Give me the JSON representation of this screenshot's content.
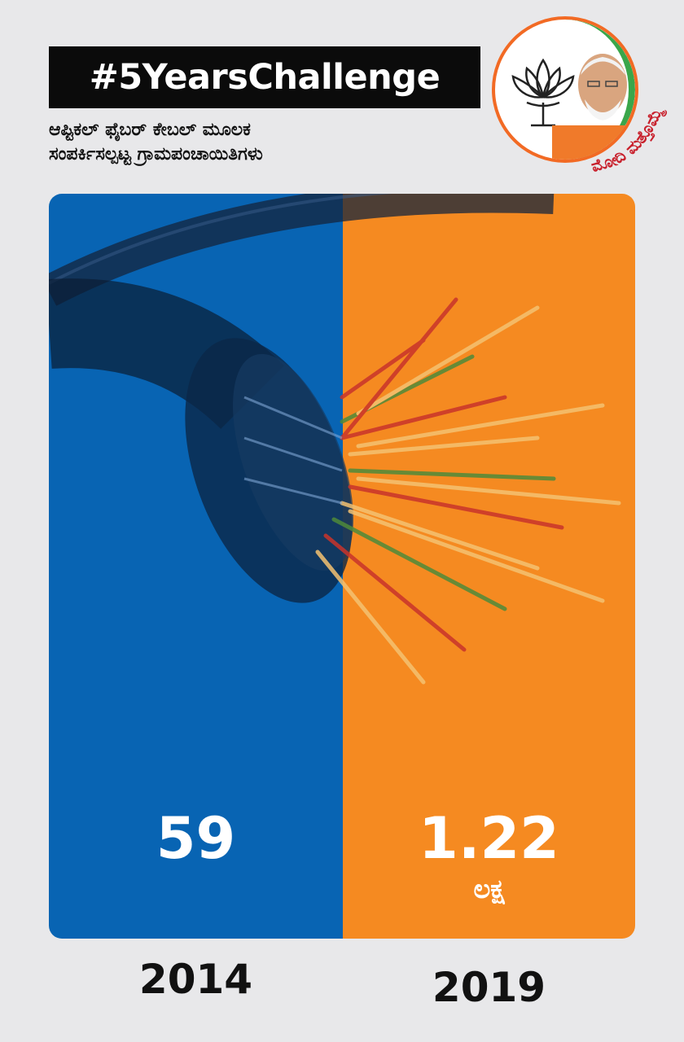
{
  "header": {
    "hashtag": "#5YearsChallenge",
    "subtitle_line1": "ಆಪ್ಟಿಕಲ್ ಫೈಬರ್ ಕೇಬಲ್ ಮೂಲಕ",
    "subtitle_line2": "ಸಂಪರ್ಕಿಸಲ್ಪಟ್ಟ ಗ್ರಾಮಪಂಚಾಯಿತಿಗಳು"
  },
  "logo": {
    "icon": "bjp-lotus-icon",
    "portrait": "leader-portrait",
    "tagline": "ಮೋದಿ ಮತ್ತೊಮ್ಮೆ"
  },
  "comparison": {
    "left": {
      "year": "2014",
      "value": "59",
      "color": "#0864b3"
    },
    "right": {
      "year": "2019",
      "value": "1.22",
      "unit": "ಲಕ್ಷ",
      "color": "#f58a21"
    }
  }
}
